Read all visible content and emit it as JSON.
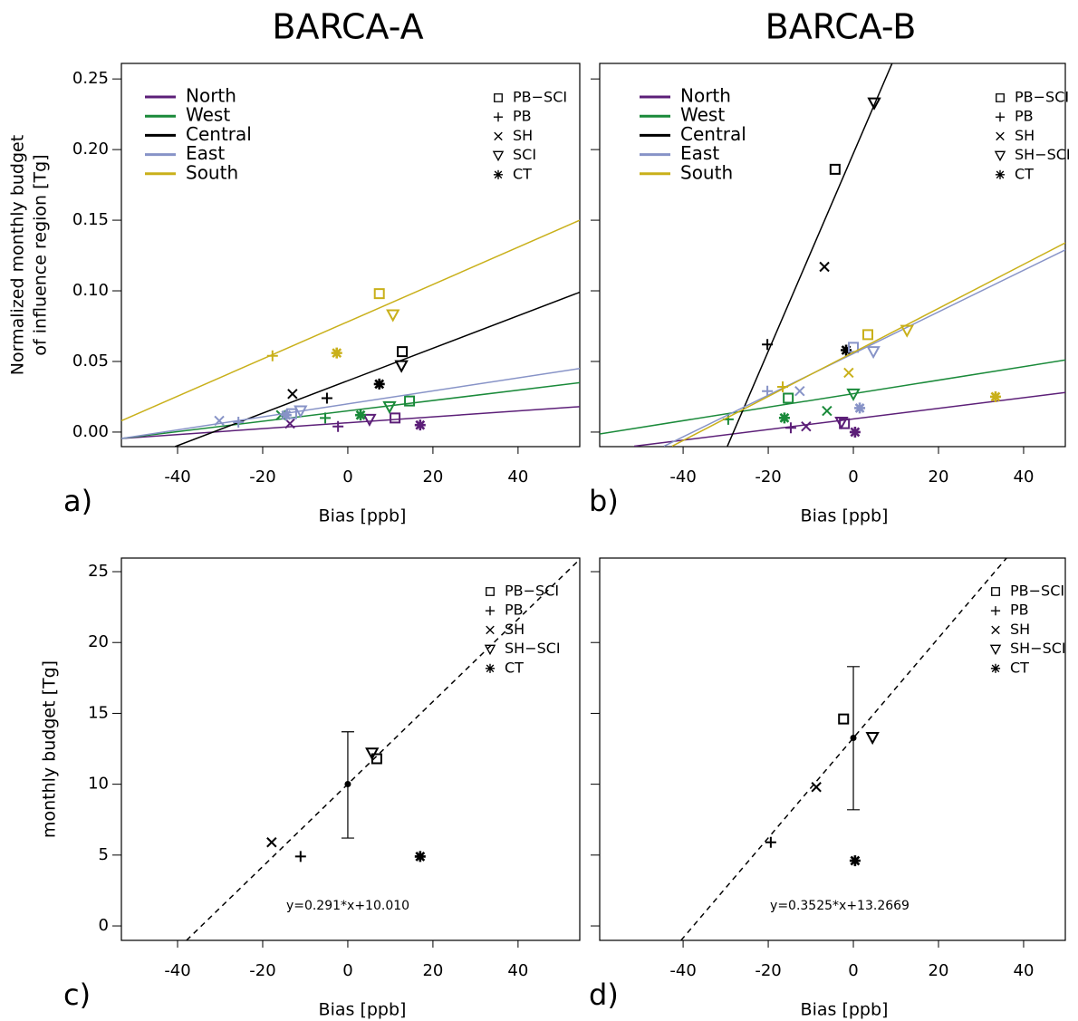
{
  "chart_data": [
    {
      "type": "scatter",
      "title": "BARCA-A",
      "panel_label": "a)",
      "xlabel": "Bias [ppb]",
      "ylabel": [
        "Normalized monthly budget",
        "of influence region [Tg]"
      ],
      "xlim": [
        -53.2,
        54.5
      ],
      "ylim": [
        -0.0103,
        0.261
      ],
      "xticks": [
        -40,
        -20,
        0,
        20,
        40
      ],
      "yticks": [
        {
          "value": 0,
          "label": "0.00"
        },
        {
          "value": 0.05,
          "label": "0.05"
        },
        {
          "value": 0.1,
          "label": "0.10"
        },
        {
          "value": 0.15,
          "label": "0.15"
        },
        {
          "value": 0.2,
          "label": "0.20"
        },
        {
          "value": 0.25,
          "label": "0.25"
        }
      ],
      "show_ytick_labels": true,
      "methods": [
        {
          "name": "PB−SCI",
          "symbol": "square"
        },
        {
          "name": "PB",
          "symbol": "plus"
        },
        {
          "name": "SH",
          "symbol": "cross"
        },
        {
          "name": "SCI",
          "symbol": "triangle"
        },
        {
          "name": "CT",
          "symbol": "asterisk"
        }
      ],
      "series": [
        {
          "name": "North",
          "color": "#5c1f78",
          "x": [
            11.1,
            -2.3,
            -13.6,
            5.1,
            17.0
          ],
          "y": [
            0.01,
            0.004,
            0.006,
            0.009,
            0.005
          ],
          "fit": {
            "x": [
              -53.2,
              54.5
            ],
            "y": [
              -0.0045,
              0.018
            ]
          }
        },
        {
          "name": "West",
          "color": "#1a8a3a",
          "x": [
            14.5,
            -5.3,
            -15.7,
            9.8,
            3.0
          ],
          "y": [
            0.022,
            0.01,
            0.012,
            0.018,
            0.012
          ],
          "fit": {
            "x": [
              -53.2,
              54.5
            ],
            "y": [
              -0.0045,
              0.035
            ]
          }
        },
        {
          "name": "Central",
          "color": "#000000",
          "x": [
            12.8,
            -4.9,
            -13.0,
            12.6,
            7.4
          ],
          "y": [
            0.057,
            0.024,
            0.027,
            0.047,
            0.034
          ],
          "fit": {
            "x": [
              -40.6,
              54.5
            ],
            "y": [
              -0.0103,
              0.099
            ]
          }
        },
        {
          "name": "East",
          "color": "#8793c7",
          "x": [
            -13.2,
            -25.7,
            -30.2,
            -11.1,
            -14.5
          ],
          "y": [
            0.013,
            0.007,
            0.008,
            0.015,
            0.012
          ],
          "fit": {
            "x": [
              -53.2,
              54.5
            ],
            "y": [
              -0.0045,
              0.045
            ]
          }
        },
        {
          "name": "South",
          "color": "#c9b01a",
          "x": [
            7.4,
            -17.7,
            null,
            10.6,
            -2.6
          ],
          "y": [
            0.098,
            0.054,
            null,
            0.083,
            0.056
          ],
          "fit": {
            "x": [
              -53.2,
              54.5
            ],
            "y": [
              0.008,
              0.15
            ]
          }
        }
      ]
    },
    {
      "type": "scatter",
      "title": "BARCA-B",
      "panel_label": "b)",
      "xlabel": "Bias [ppb]",
      "xlim": [
        -59.6,
        49.8
      ],
      "ylim": [
        -0.0103,
        0.261
      ],
      "xticks": [
        -40,
        -20,
        0,
        20,
        40
      ],
      "yticks": [
        0,
        0.05,
        0.1,
        0.15,
        0.2,
        0.25
      ],
      "show_ytick_labels": false,
      "methods": [
        {
          "name": "PB−SCI",
          "symbol": "square"
        },
        {
          "name": "PB",
          "symbol": "plus"
        },
        {
          "name": "SH",
          "symbol": "cross"
        },
        {
          "name": "SH−SCI",
          "symbol": "triangle"
        },
        {
          "name": "CT",
          "symbol": "asterisk"
        }
      ],
      "series": [
        {
          "name": "North",
          "color": "#5c1f78",
          "x": [
            -2.1,
            -14.7,
            -11.1,
            -2.8,
            0.4
          ],
          "y": [
            0.006,
            0.003,
            0.004,
            0.007,
            0.0
          ],
          "fit": {
            "x": [
              -51.5,
              49.8
            ],
            "y": [
              -0.01,
              0.028
            ]
          }
        },
        {
          "name": "West",
          "color": "#1a8a3a",
          "x": [
            -15.3,
            -29.4,
            -6.2,
            0.0,
            -16.2
          ],
          "y": [
            0.024,
            0.009,
            0.015,
            0.027,
            0.01
          ],
          "fit": {
            "x": [
              -59.6,
              49.8
            ],
            "y": [
              -0.0013,
              0.051
            ]
          }
        },
        {
          "name": "Central",
          "color": "#000000",
          "x": [
            -4.3,
            -20.2,
            -6.8,
            4.9,
            -1.7
          ],
          "y": [
            0.186,
            0.062,
            0.117,
            0.233,
            0.058
          ],
          "fit": {
            "x": [
              -29.6,
              9.1
            ],
            "y": [
              -0.01,
              0.261
            ]
          }
        },
        {
          "name": "East",
          "color": "#8793c7",
          "x": [
            0.0,
            -20.2,
            -12.6,
            4.7,
            1.5
          ],
          "y": [
            0.06,
            0.029,
            0.029,
            0.057,
            0.017
          ],
          "fit": {
            "x": [
              -44.5,
              49.8
            ],
            "y": [
              -0.01,
              0.129
            ]
          }
        },
        {
          "name": "South",
          "color": "#c9b01a",
          "x": [
            3.4,
            -16.6,
            -1.1,
            12.6,
            33.4
          ],
          "y": [
            0.069,
            0.032,
            0.042,
            0.072,
            0.025
          ],
          "fit": {
            "x": [
              -42.6,
              49.8
            ],
            "y": [
              -0.01,
              0.134
            ]
          }
        }
      ]
    },
    {
      "type": "scatter",
      "panel_label": "c)",
      "xlabel": "Bias [ppb]",
      "ylabel": [
        "monthly budget [Tg]"
      ],
      "xlim": [
        -53.2,
        54.5
      ],
      "ylim": [
        -1.02,
        25.96
      ],
      "xticks": [
        -40,
        -20,
        0,
        20,
        40
      ],
      "yticks": [
        0,
        5,
        10,
        15,
        20,
        25
      ],
      "show_ytick_labels": true,
      "methods": [
        {
          "name": "PB−SCI",
          "symbol": "square"
        },
        {
          "name": "PB",
          "symbol": "plus"
        },
        {
          "name": "SH",
          "symbol": "cross"
        },
        {
          "name": "SH−SCI",
          "symbol": "triangle"
        },
        {
          "name": "CT",
          "symbol": "asterisk"
        }
      ],
      "series": [
        {
          "color": "#000000",
          "x": [
            6.8,
            -11.1,
            -17.9,
            5.7,
            17.0
          ],
          "y": [
            11.8,
            4.9,
            5.9,
            12.2,
            4.9
          ],
          "fit": {
            "x": [
              -37.9,
              54.5
            ],
            "y": [
              -1.02,
              25.87
            ],
            "dashed": true,
            "label": "y=0.291*x+10.010"
          }
        }
      ],
      "mean": {
        "x": 0,
        "y": 10.01,
        "lower": 6.2,
        "upper": 13.7
      }
    },
    {
      "type": "scatter",
      "panel_label": "d)",
      "xlabel": "Bias [ppb]",
      "xlim": [
        -59.6,
        49.8
      ],
      "ylim": [
        -1.02,
        25.96
      ],
      "xticks": [
        -40,
        -20,
        0,
        20,
        40
      ],
      "yticks": [
        0,
        5,
        10,
        15,
        20,
        25
      ],
      "show_ytick_labels": false,
      "methods": [
        {
          "name": "PB−SCI",
          "symbol": "square"
        },
        {
          "name": "PB",
          "symbol": "plus"
        },
        {
          "name": "SH",
          "symbol": "cross"
        },
        {
          "name": "SH−SCI",
          "symbol": "triangle"
        },
        {
          "name": "CT",
          "symbol": "asterisk"
        }
      ],
      "series": [
        {
          "color": "#000000",
          "x": [
            -2.3,
            -19.4,
            -8.7,
            4.5,
            0.4
          ],
          "y": [
            14.6,
            5.9,
            9.8,
            13.3,
            4.6
          ],
          "fit": {
            "x": [
              -40.5,
              35.99
            ],
            "y": [
              -1.02,
              25.96
            ],
            "dashed": true,
            "label": "y=0.3525*x+13.2669"
          }
        }
      ],
      "mean": {
        "x": 0,
        "y": 13.27,
        "lower": 8.2,
        "upper": 18.3
      }
    }
  ]
}
